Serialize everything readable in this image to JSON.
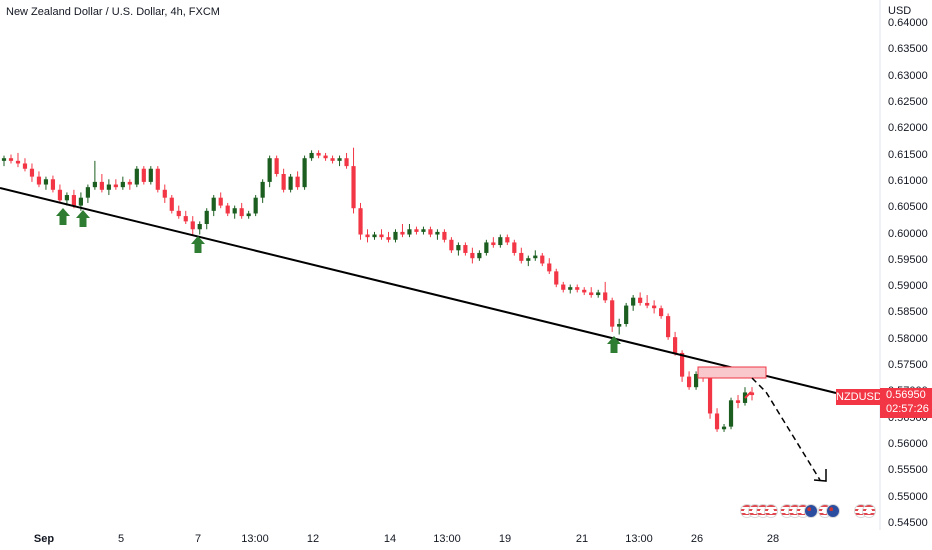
{
  "header": {
    "title": "New Zealand Dollar / U.S. Dollar, 4h, FXCM",
    "currency": "USD"
  },
  "price_axis": {
    "labels": [
      "0.64000",
      "0.63500",
      "0.63000",
      "0.62500",
      "0.62000",
      "0.61500",
      "0.61000",
      "0.60500",
      "0.60000",
      "0.59500",
      "0.59000",
      "0.58500",
      "0.58000",
      "0.57500",
      "0.57000",
      "0.56500",
      "0.56000",
      "0.55500",
      "0.55000",
      "0.54500"
    ]
  },
  "time_axis": {
    "labels": [
      {
        "text": "Sep",
        "bold": true
      },
      {
        "text": "5",
        "bold": false
      },
      {
        "text": "7",
        "bold": false
      },
      {
        "text": "13:00",
        "bold": false
      },
      {
        "text": "12",
        "bold": false
      },
      {
        "text": "14",
        "bold": false
      },
      {
        "text": "13:00",
        "bold": false
      },
      {
        "text": "19",
        "bold": false
      },
      {
        "text": "21",
        "bold": false
      },
      {
        "text": "13:00",
        "bold": false
      },
      {
        "text": "26",
        "bold": false
      },
      {
        "text": "28",
        "bold": false
      }
    ]
  },
  "last_price": {
    "symbol": "NZDUSD",
    "price": "0.56950",
    "countdown": "02:57:26"
  },
  "colors": {
    "up": "#1b5e20",
    "down": "#f23645",
    "trendline": "#000000",
    "arrow": "#2e7d32",
    "zone_fill": "#f8c8cc",
    "zone_stroke": "#f23645"
  },
  "chart_data": {
    "type": "candlestick",
    "title": "New Zealand Dollar / U.S. Dollar, 4h, FXCM",
    "ylabel": "USD",
    "ylim": [
      0.545,
      0.641
    ],
    "candles": [
      [
        0.614,
        0.615,
        0.613,
        0.6145
      ],
      [
        0.6145,
        0.6152,
        0.6135,
        0.614
      ],
      [
        0.614,
        0.6155,
        0.6128,
        0.6135
      ],
      [
        0.6135,
        0.6145,
        0.612,
        0.6125
      ],
      [
        0.6125,
        0.6135,
        0.61,
        0.611
      ],
      [
        0.611,
        0.612,
        0.609,
        0.6095
      ],
      [
        0.6095,
        0.611,
        0.6085,
        0.6105
      ],
      [
        0.6105,
        0.6112,
        0.608,
        0.6085
      ],
      [
        0.6085,
        0.6095,
        0.606,
        0.6065
      ],
      [
        0.6065,
        0.608,
        0.6055,
        0.6075
      ],
      [
        0.6075,
        0.6085,
        0.605,
        0.6055
      ],
      [
        0.6055,
        0.608,
        0.6045,
        0.607
      ],
      [
        0.607,
        0.6095,
        0.606,
        0.609
      ],
      [
        0.609,
        0.614,
        0.6085,
        0.61
      ],
      [
        0.61,
        0.6115,
        0.608,
        0.6085
      ],
      [
        0.6085,
        0.6105,
        0.6075,
        0.6095
      ],
      [
        0.6095,
        0.6105,
        0.6085,
        0.609
      ],
      [
        0.609,
        0.611,
        0.6085,
        0.61
      ],
      [
        0.61,
        0.6105,
        0.6085,
        0.6095
      ],
      [
        0.6095,
        0.613,
        0.609,
        0.6125
      ],
      [
        0.6125,
        0.613,
        0.6095,
        0.61
      ],
      [
        0.61,
        0.613,
        0.6095,
        0.6125
      ],
      [
        0.6125,
        0.613,
        0.608,
        0.6085
      ],
      [
        0.6085,
        0.6095,
        0.606,
        0.607
      ],
      [
        0.607,
        0.6075,
        0.604,
        0.6045
      ],
      [
        0.6045,
        0.6055,
        0.603,
        0.6035
      ],
      [
        0.6035,
        0.6045,
        0.602,
        0.6025
      ],
      [
        0.6025,
        0.6035,
        0.6,
        0.601
      ],
      [
        0.601,
        0.6025,
        0.6,
        0.602
      ],
      [
        0.602,
        0.605,
        0.601,
        0.6045
      ],
      [
        0.6045,
        0.6075,
        0.6035,
        0.607
      ],
      [
        0.607,
        0.608,
        0.605,
        0.6055
      ],
      [
        0.6055,
        0.606,
        0.6035,
        0.604
      ],
      [
        0.604,
        0.6055,
        0.603,
        0.605
      ],
      [
        0.605,
        0.606,
        0.603,
        0.6035
      ],
      [
        0.6035,
        0.6045,
        0.603,
        0.604
      ],
      [
        0.604,
        0.6075,
        0.6035,
        0.607
      ],
      [
        0.607,
        0.6105,
        0.606,
        0.61
      ],
      [
        0.61,
        0.615,
        0.609,
        0.6145
      ],
      [
        0.6145,
        0.615,
        0.611,
        0.6115
      ],
      [
        0.6115,
        0.6125,
        0.608,
        0.6085
      ],
      [
        0.6085,
        0.6115,
        0.608,
        0.611
      ],
      [
        0.611,
        0.612,
        0.6085,
        0.609
      ],
      [
        0.609,
        0.615,
        0.6085,
        0.6145
      ],
      [
        0.6145,
        0.616,
        0.614,
        0.6155
      ],
      [
        0.6155,
        0.616,
        0.6145,
        0.615
      ],
      [
        0.615,
        0.6155,
        0.614,
        0.6145
      ],
      [
        0.6145,
        0.615,
        0.6135,
        0.614
      ],
      [
        0.614,
        0.615,
        0.613,
        0.6145
      ],
      [
        0.6145,
        0.6155,
        0.6125,
        0.613
      ],
      [
        0.613,
        0.6165,
        0.604,
        0.605
      ],
      [
        0.605,
        0.606,
        0.599,
        0.6
      ],
      [
        0.6,
        0.601,
        0.5985,
        0.5995
      ],
      [
        0.5995,
        0.6005,
        0.599,
        0.6
      ],
      [
        0.6,
        0.601,
        0.599,
        0.5995
      ],
      [
        0.5995,
        0.6005,
        0.5985,
        0.599
      ],
      [
        0.599,
        0.601,
        0.5985,
        0.6005
      ],
      [
        0.6005,
        0.602,
        0.5995,
        0.6
      ],
      [
        0.6,
        0.602,
        0.5995,
        0.601
      ],
      [
        0.601,
        0.6015,
        0.6,
        0.6005
      ],
      [
        0.6005,
        0.6015,
        0.6,
        0.601
      ],
      [
        0.601,
        0.6015,
        0.5995,
        0.6
      ],
      [
        0.6,
        0.601,
        0.599,
        0.6005
      ],
      [
        0.6005,
        0.601,
        0.5985,
        0.599
      ],
      [
        0.599,
        0.5995,
        0.5965,
        0.597
      ],
      [
        0.597,
        0.5985,
        0.596,
        0.598
      ],
      [
        0.598,
        0.5985,
        0.596,
        0.5965
      ],
      [
        0.5965,
        0.5975,
        0.5945,
        0.5955
      ],
      [
        0.5955,
        0.597,
        0.595,
        0.5965
      ],
      [
        0.5965,
        0.599,
        0.596,
        0.5985
      ],
      [
        0.5985,
        0.5995,
        0.5975,
        0.598
      ],
      [
        0.598,
        0.6,
        0.5975,
        0.5995
      ],
      [
        0.5995,
        0.6,
        0.598,
        0.5985
      ],
      [
        0.5985,
        0.599,
        0.596,
        0.5965
      ],
      [
        0.5965,
        0.5975,
        0.5945,
        0.595
      ],
      [
        0.595,
        0.596,
        0.594,
        0.5955
      ],
      [
        0.5955,
        0.597,
        0.595,
        0.596
      ],
      [
        0.596,
        0.5965,
        0.594,
        0.5945
      ],
      [
        0.5945,
        0.5955,
        0.5925,
        0.593
      ],
      [
        0.593,
        0.5935,
        0.59,
        0.5905
      ],
      [
        0.5905,
        0.591,
        0.589,
        0.5895
      ],
      [
        0.5895,
        0.5905,
        0.5888,
        0.59
      ],
      [
        0.59,
        0.5905,
        0.589,
        0.5895
      ],
      [
        0.5895,
        0.59,
        0.5885,
        0.589
      ],
      [
        0.589,
        0.59,
        0.588,
        0.5885
      ],
      [
        0.5885,
        0.5895,
        0.588,
        0.589
      ],
      [
        0.589,
        0.591,
        0.587,
        0.5875
      ],
      [
        0.5875,
        0.588,
        0.5815,
        0.5825
      ],
      [
        0.5825,
        0.584,
        0.581,
        0.583
      ],
      [
        0.583,
        0.587,
        0.5825,
        0.5865
      ],
      [
        0.5865,
        0.5885,
        0.5855,
        0.588
      ],
      [
        0.588,
        0.589,
        0.5865,
        0.587
      ],
      [
        0.587,
        0.5885,
        0.586,
        0.5865
      ],
      [
        0.5865,
        0.5875,
        0.585,
        0.586
      ],
      [
        0.586,
        0.5865,
        0.584,
        0.5845
      ],
      [
        0.5845,
        0.585,
        0.58,
        0.5805
      ],
      [
        0.5805,
        0.5815,
        0.577,
        0.5775
      ],
      [
        0.5775,
        0.578,
        0.572,
        0.573
      ],
      [
        0.573,
        0.574,
        0.5705,
        0.571
      ],
      [
        0.571,
        0.574,
        0.5705,
        0.5735
      ],
      [
        0.5735,
        0.5745,
        0.572,
        0.573
      ],
      [
        0.573,
        0.574,
        0.565,
        0.566
      ],
      [
        0.566,
        0.567,
        0.5625,
        0.563
      ],
      [
        0.563,
        0.564,
        0.5625,
        0.5635
      ],
      [
        0.5635,
        0.569,
        0.563,
        0.5685
      ],
      [
        0.5685,
        0.5695,
        0.567,
        0.568
      ],
      [
        0.568,
        0.571,
        0.5675,
        0.57
      ],
      [
        0.57,
        0.571,
        0.5685,
        0.5695
      ]
    ]
  }
}
